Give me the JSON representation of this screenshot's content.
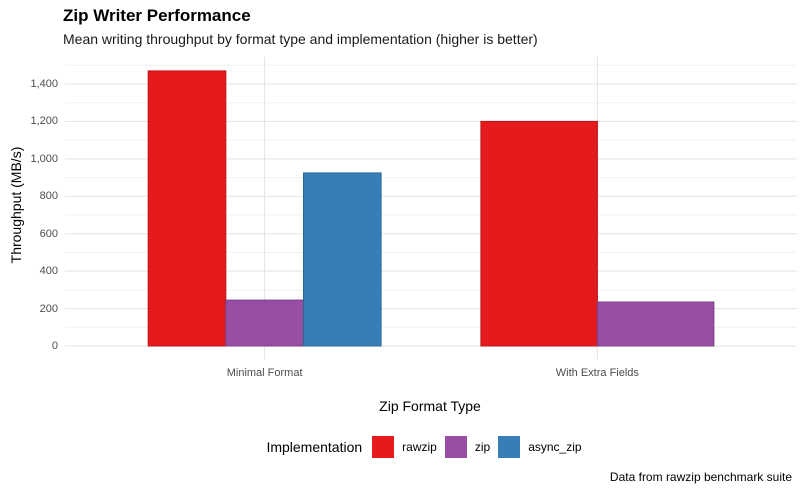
{
  "header": {
    "title": "Zip Writer Performance",
    "subtitle": "Mean writing throughput by format type and implementation (higher is better)"
  },
  "caption": "Data from rawzip benchmark suite",
  "chart_data": {
    "type": "bar",
    "title": "Zip Writer Performance",
    "subtitle": "Mean writing throughput by format type and implementation (higher is better)",
    "xlabel": "Zip Format Type",
    "ylabel": "Throughput (MB/s)",
    "categories": [
      "Minimal Format",
      "With Extra Fields"
    ],
    "series": [
      {
        "name": "rawzip",
        "color": "#E41A1C",
        "border": "#C01318",
        "values": [
          1470,
          1200
        ]
      },
      {
        "name": "zip",
        "color": "#984EA3",
        "border": "#7C3D86",
        "values": [
          245,
          235
        ]
      },
      {
        "name": "async_zip",
        "color": "#377EB8",
        "border": "#2C6897",
        "values": [
          925,
          null
        ]
      }
    ],
    "legend_title": "Implementation",
    "legend_position": "bottom",
    "ylim": [
      0,
      1500
    ],
    "yticks_major": [
      0,
      200,
      400,
      600,
      800,
      1000,
      1200,
      1400
    ],
    "ytick_labels": [
      "0",
      "200",
      "400",
      "600",
      "800",
      "1,000",
      "1,200",
      "1,400"
    ],
    "yticks_minor": [
      100,
      300,
      500,
      700,
      900,
      1100,
      1300,
      1500
    ],
    "grid": "horizontal major+minor gridlines, vertical gridline at each category",
    "bar_labels": false,
    "grid_colors": {
      "major": "#e3e3e3",
      "minor": "#f1f1f1"
    },
    "caption": "Data from rawzip benchmark suite"
  }
}
